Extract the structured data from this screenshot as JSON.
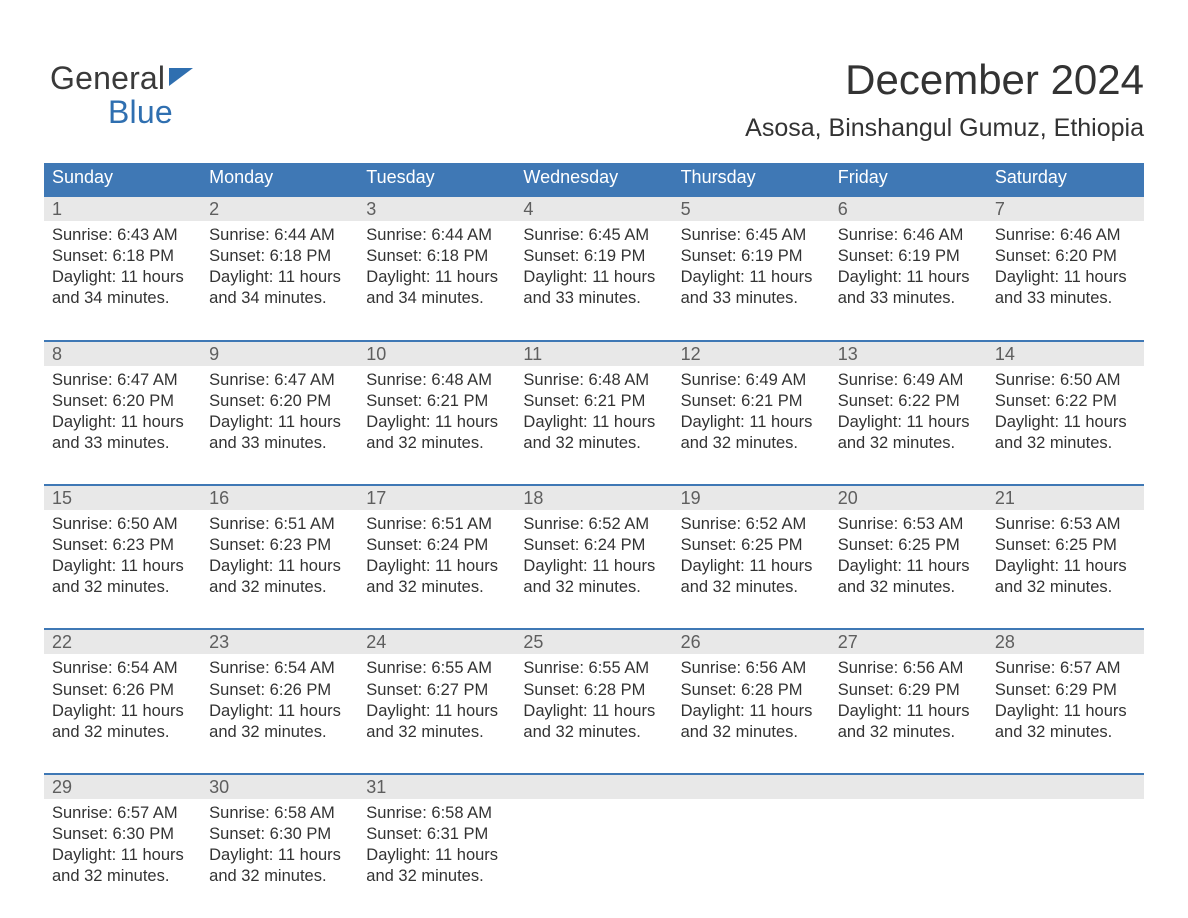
{
  "branding": {
    "logo_word1": "General",
    "logo_word2": "Blue",
    "logo_color_primary": "#3a3a3a",
    "logo_color_accent": "#2f6fb0"
  },
  "heading": {
    "month_title": "December 2024",
    "location": "Asosa, Binshangul Gumuz, Ethiopia"
  },
  "styling": {
    "header_bg": "#3f78b5",
    "header_text": "#ffffff",
    "daynum_bg": "#e8e8e8",
    "daynum_text": "#5e5e5e",
    "cell_border_top": "#3f78b5",
    "body_text": "#333333",
    "background": "#ffffff",
    "header_fontsize_pt": 13,
    "title_fontsize_pt": 32,
    "location_fontsize_pt": 19,
    "cell_fontsize_pt": 12
  },
  "day_labels": [
    "Sunday",
    "Monday",
    "Tuesday",
    "Wednesday",
    "Thursday",
    "Friday",
    "Saturday"
  ],
  "weeks": [
    [
      {
        "num": "1",
        "sunrise": "Sunrise: 6:43 AM",
        "sunset": "Sunset: 6:18 PM",
        "day1": "Daylight: 11 hours",
        "day2": "and 34 minutes."
      },
      {
        "num": "2",
        "sunrise": "Sunrise: 6:44 AM",
        "sunset": "Sunset: 6:18 PM",
        "day1": "Daylight: 11 hours",
        "day2": "and 34 minutes."
      },
      {
        "num": "3",
        "sunrise": "Sunrise: 6:44 AM",
        "sunset": "Sunset: 6:18 PM",
        "day1": "Daylight: 11 hours",
        "day2": "and 34 minutes."
      },
      {
        "num": "4",
        "sunrise": "Sunrise: 6:45 AM",
        "sunset": "Sunset: 6:19 PM",
        "day1": "Daylight: 11 hours",
        "day2": "and 33 minutes."
      },
      {
        "num": "5",
        "sunrise": "Sunrise: 6:45 AM",
        "sunset": "Sunset: 6:19 PM",
        "day1": "Daylight: 11 hours",
        "day2": "and 33 minutes."
      },
      {
        "num": "6",
        "sunrise": "Sunrise: 6:46 AM",
        "sunset": "Sunset: 6:19 PM",
        "day1": "Daylight: 11 hours",
        "day2": "and 33 minutes."
      },
      {
        "num": "7",
        "sunrise": "Sunrise: 6:46 AM",
        "sunset": "Sunset: 6:20 PM",
        "day1": "Daylight: 11 hours",
        "day2": "and 33 minutes."
      }
    ],
    [
      {
        "num": "8",
        "sunrise": "Sunrise: 6:47 AM",
        "sunset": "Sunset: 6:20 PM",
        "day1": "Daylight: 11 hours",
        "day2": "and 33 minutes."
      },
      {
        "num": "9",
        "sunrise": "Sunrise: 6:47 AM",
        "sunset": "Sunset: 6:20 PM",
        "day1": "Daylight: 11 hours",
        "day2": "and 33 minutes."
      },
      {
        "num": "10",
        "sunrise": "Sunrise: 6:48 AM",
        "sunset": "Sunset: 6:21 PM",
        "day1": "Daylight: 11 hours",
        "day2": "and 32 minutes."
      },
      {
        "num": "11",
        "sunrise": "Sunrise: 6:48 AM",
        "sunset": "Sunset: 6:21 PM",
        "day1": "Daylight: 11 hours",
        "day2": "and 32 minutes."
      },
      {
        "num": "12",
        "sunrise": "Sunrise: 6:49 AM",
        "sunset": "Sunset: 6:21 PM",
        "day1": "Daylight: 11 hours",
        "day2": "and 32 minutes."
      },
      {
        "num": "13",
        "sunrise": "Sunrise: 6:49 AM",
        "sunset": "Sunset: 6:22 PM",
        "day1": "Daylight: 11 hours",
        "day2": "and 32 minutes."
      },
      {
        "num": "14",
        "sunrise": "Sunrise: 6:50 AM",
        "sunset": "Sunset: 6:22 PM",
        "day1": "Daylight: 11 hours",
        "day2": "and 32 minutes."
      }
    ],
    [
      {
        "num": "15",
        "sunrise": "Sunrise: 6:50 AM",
        "sunset": "Sunset: 6:23 PM",
        "day1": "Daylight: 11 hours",
        "day2": "and 32 minutes."
      },
      {
        "num": "16",
        "sunrise": "Sunrise: 6:51 AM",
        "sunset": "Sunset: 6:23 PM",
        "day1": "Daylight: 11 hours",
        "day2": "and 32 minutes."
      },
      {
        "num": "17",
        "sunrise": "Sunrise: 6:51 AM",
        "sunset": "Sunset: 6:24 PM",
        "day1": "Daylight: 11 hours",
        "day2": "and 32 minutes."
      },
      {
        "num": "18",
        "sunrise": "Sunrise: 6:52 AM",
        "sunset": "Sunset: 6:24 PM",
        "day1": "Daylight: 11 hours",
        "day2": "and 32 minutes."
      },
      {
        "num": "19",
        "sunrise": "Sunrise: 6:52 AM",
        "sunset": "Sunset: 6:25 PM",
        "day1": "Daylight: 11 hours",
        "day2": "and 32 minutes."
      },
      {
        "num": "20",
        "sunrise": "Sunrise: 6:53 AM",
        "sunset": "Sunset: 6:25 PM",
        "day1": "Daylight: 11 hours",
        "day2": "and 32 minutes."
      },
      {
        "num": "21",
        "sunrise": "Sunrise: 6:53 AM",
        "sunset": "Sunset: 6:25 PM",
        "day1": "Daylight: 11 hours",
        "day2": "and 32 minutes."
      }
    ],
    [
      {
        "num": "22",
        "sunrise": "Sunrise: 6:54 AM",
        "sunset": "Sunset: 6:26 PM",
        "day1": "Daylight: 11 hours",
        "day2": "and 32 minutes."
      },
      {
        "num": "23",
        "sunrise": "Sunrise: 6:54 AM",
        "sunset": "Sunset: 6:26 PM",
        "day1": "Daylight: 11 hours",
        "day2": "and 32 minutes."
      },
      {
        "num": "24",
        "sunrise": "Sunrise: 6:55 AM",
        "sunset": "Sunset: 6:27 PM",
        "day1": "Daylight: 11 hours",
        "day2": "and 32 minutes."
      },
      {
        "num": "25",
        "sunrise": "Sunrise: 6:55 AM",
        "sunset": "Sunset: 6:28 PM",
        "day1": "Daylight: 11 hours",
        "day2": "and 32 minutes."
      },
      {
        "num": "26",
        "sunrise": "Sunrise: 6:56 AM",
        "sunset": "Sunset: 6:28 PM",
        "day1": "Daylight: 11 hours",
        "day2": "and 32 minutes."
      },
      {
        "num": "27",
        "sunrise": "Sunrise: 6:56 AM",
        "sunset": "Sunset: 6:29 PM",
        "day1": "Daylight: 11 hours",
        "day2": "and 32 minutes."
      },
      {
        "num": "28",
        "sunrise": "Sunrise: 6:57 AM",
        "sunset": "Sunset: 6:29 PM",
        "day1": "Daylight: 11 hours",
        "day2": "and 32 minutes."
      }
    ],
    [
      {
        "num": "29",
        "sunrise": "Sunrise: 6:57 AM",
        "sunset": "Sunset: 6:30 PM",
        "day1": "Daylight: 11 hours",
        "day2": "and 32 minutes."
      },
      {
        "num": "30",
        "sunrise": "Sunrise: 6:58 AM",
        "sunset": "Sunset: 6:30 PM",
        "day1": "Daylight: 11 hours",
        "day2": "and 32 minutes."
      },
      {
        "num": "31",
        "sunrise": "Sunrise: 6:58 AM",
        "sunset": "Sunset: 6:31 PM",
        "day1": "Daylight: 11 hours",
        "day2": "and 32 minutes."
      },
      {
        "empty": true
      },
      {
        "empty": true
      },
      {
        "empty": true
      },
      {
        "empty": true
      }
    ]
  ]
}
